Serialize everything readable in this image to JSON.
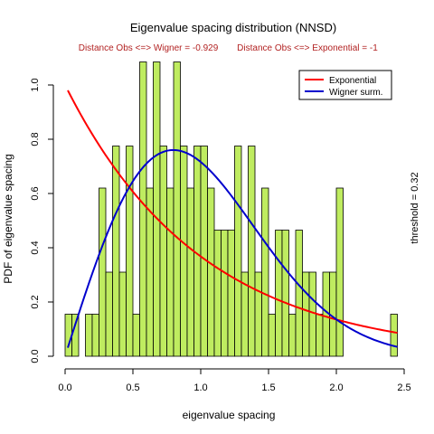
{
  "chart_data": {
    "type": "bar",
    "title": "Eigenvalue spacing distribution (NNSD)",
    "subtitle_left": "Distance Obs <=> Wigner = -0.929",
    "subtitle_right": "Distance Obs <=> Exponential = -1",
    "xlabel": "eigenvalue spacing",
    "ylabel": "PDF of eigenvalue spacing",
    "side_label": "threshold = 0.32",
    "xlim": [
      0,
      2.5
    ],
    "ylim": [
      0,
      1.0
    ],
    "x_ticks": [
      {
        "value": 0,
        "label": "0.0"
      },
      {
        "value": 0.5,
        "label": "0.5"
      },
      {
        "value": 1.0,
        "label": "1.0"
      },
      {
        "value": 1.5,
        "label": "1.5"
      },
      {
        "value": 2.0,
        "label": "2.0"
      },
      {
        "value": 2.5,
        "label": "2.5"
      }
    ],
    "y_ticks": [
      {
        "value": 0,
        "label": "0.0"
      },
      {
        "value": 0.2,
        "label": "0.2"
      },
      {
        "value": 0.4,
        "label": "0.4"
      },
      {
        "value": 0.6,
        "label": "0.6"
      },
      {
        "value": 0.8,
        "label": "0.8"
      },
      {
        "value": 1.0,
        "label": "1.0"
      }
    ],
    "histogram": {
      "bin_start": 0,
      "bin_width": 0.05,
      "values": [
        0.155,
        0.155,
        0,
        0.155,
        0.155,
        0.62,
        0.31,
        0.775,
        0.31,
        0.775,
        0.155,
        1.085,
        0.62,
        1.085,
        0.775,
        0.62,
        1.085,
        0.775,
        0.62,
        0.775,
        0.775,
        0.62,
        0.465,
        0.465,
        0.465,
        0.775,
        0.31,
        0.775,
        0.31,
        0.62,
        0.155,
        0.465,
        0.465,
        0.155,
        0.465,
        0.31,
        0.31,
        0.155,
        0.31,
        0.31,
        0.62,
        0,
        0,
        0,
        0,
        0,
        0,
        0,
        0.155
      ],
      "fill_color": "#BFEC60",
      "edge_color": "#000000"
    },
    "series": [
      {
        "name": "Exponential",
        "color": "#FF0000",
        "function": "exponential",
        "x_range": [
          0.02,
          2.45
        ]
      },
      {
        "name": "Wigner surm.",
        "color": "#0000CD",
        "function": "wigner",
        "x_range": [
          0.02,
          2.45
        ]
      }
    ],
    "legend_position": "top-right"
  }
}
